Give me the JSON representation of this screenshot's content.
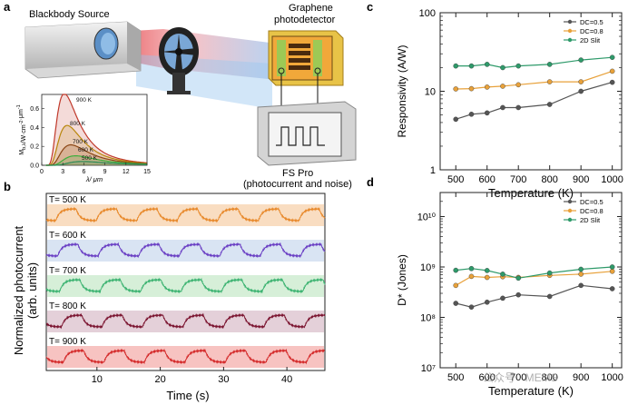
{
  "panel_a": {
    "letter": "a",
    "source_label": "Blackbody Source",
    "detector_label_1": "Graphene",
    "detector_label_2": "photodetector",
    "instrument_label_1": "FS Pro",
    "instrument_label_2": "(photocurrent and noise)",
    "inset": {
      "ylabel_main": "M",
      "ylabel_sub": "b,λ",
      "ylabel_rest": "/W·cm",
      "ylabel_exp1": "-2",
      "ylabel_mid": "·μm",
      "ylabel_exp2": "-1",
      "xlabel": "λ/ μm",
      "yticks": [
        "0.0",
        "0.2",
        "0.4",
        "0.6"
      ],
      "xticks": [
        "0",
        "3",
        "6",
        "9",
        "12",
        "15"
      ],
      "curve_labels": [
        "900 K",
        "800 K",
        "700 K",
        "600 K",
        "500 K"
      ],
      "colors": [
        "#c0392b",
        "#b8860b",
        "#8b4513",
        "#3cae3c",
        "#2e8b57"
      ]
    }
  },
  "panel_b": {
    "letter": "b",
    "ylabel_1": "Normalized photocurrent",
    "ylabel_2": "(arb. units)",
    "xlabel": "Time (s)",
    "xticks": [
      "10",
      "20",
      "30",
      "40"
    ],
    "traces": [
      {
        "label": "T= 500 K",
        "color": "#e8892b",
        "band": "#f6cfa7"
      },
      {
        "label": "T= 600 K",
        "color": "#6a3fc4",
        "band": "#c9d8ee"
      },
      {
        "label": "T= 700 K",
        "color": "#3cb371",
        "band": "#c4e8c8"
      },
      {
        "label": "T= 800 K",
        "color": "#7b1430",
        "band": "#d9bcc9"
      },
      {
        "label": "T= 900 K",
        "color": "#d42a2a",
        "band": "#f3a9a6"
      }
    ]
  },
  "chart_data": [
    {
      "panel": "c",
      "type": "line",
      "xlabel": "Temperature (K)",
      "ylabel": "Responsivity (A/W)",
      "yscale": "log",
      "ylim": [
        1,
        100
      ],
      "xlim": [
        450,
        1030
      ],
      "xticks": [
        "500",
        "600",
        "700",
        "800",
        "900",
        "1000"
      ],
      "yticks": [
        "1",
        "10",
        "100"
      ],
      "legend_position": "top-right",
      "series": [
        {
          "name": "DC=0.5",
          "color": "#555555",
          "x": [
            500,
            550,
            600,
            650,
            700,
            800,
            900,
            1000
          ],
          "y": [
            4.4,
            5.1,
            5.3,
            6.2,
            6.2,
            6.8,
            10,
            13
          ]
        },
        {
          "name": "DC=0.8",
          "color": "#e8a13a",
          "x": [
            500,
            550,
            600,
            650,
            700,
            800,
            900,
            1000
          ],
          "y": [
            10.7,
            10.8,
            11.3,
            11.6,
            12.1,
            13.2,
            13.2,
            18
          ]
        },
        {
          "name": "2D Slit",
          "color": "#2e9a6a",
          "x": [
            500,
            550,
            600,
            650,
            700,
            800,
            900,
            1000
          ],
          "y": [
            21,
            21,
            22,
            20,
            21,
            22,
            25,
            27
          ]
        }
      ]
    },
    {
      "panel": "d",
      "type": "line",
      "xlabel": "Temperature (K)",
      "ylabel": "D* (Jones)",
      "yscale": "log",
      "ylim": [
        10000000,
        30000000000
      ],
      "xlim": [
        450,
        1030
      ],
      "xticks": [
        "500",
        "600",
        "700",
        "800",
        "900",
        "1000"
      ],
      "yticks": [
        "10⁷",
        "10⁸",
        "10⁹",
        "10¹⁰"
      ],
      "legend_position": "top-right",
      "series": [
        {
          "name": "DC=0.5",
          "color": "#555555",
          "x": [
            500,
            550,
            600,
            650,
            700,
            800,
            900,
            1000
          ],
          "y": [
            190000000,
            160000000,
            200000000,
            240000000,
            280000000,
            260000000,
            430000000,
            370000000
          ]
        },
        {
          "name": "DC=0.8",
          "color": "#e8a13a",
          "x": [
            500,
            550,
            600,
            650,
            700,
            800,
            900,
            1000
          ],
          "y": [
            430000000,
            650000000,
            620000000,
            640000000,
            620000000,
            680000000,
            720000000,
            820000000
          ]
        },
        {
          "name": "2D Slit",
          "color": "#2e9a6a",
          "x": [
            500,
            550,
            600,
            650,
            700,
            800,
            900,
            1000
          ],
          "y": [
            860000000,
            930000000,
            850000000,
            720000000,
            600000000,
            760000000,
            900000000,
            1000000000
          ]
        }
      ]
    }
  ],
  "panel_c": {
    "letter": "c"
  },
  "panel_d": {
    "letter": "d"
  },
  "watermark": "公众号 · MEMS"
}
